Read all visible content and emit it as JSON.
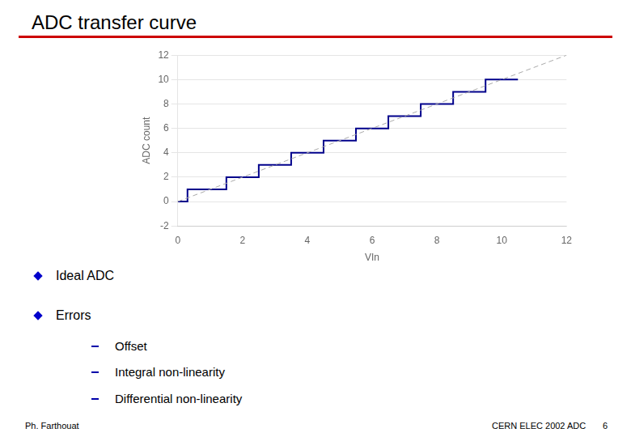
{
  "chart_data": {
    "type": "line",
    "title": "ADC transfer curve",
    "xlabel": "VIn",
    "ylabel": "ADC count",
    "annotations": [
      "Ideal ADC",
      "Errors",
      "Offset",
      "Integral non-linearity",
      "Differential non-linearity",
      "Ph. Farthouat",
      "CERN ELEC 2002 ADC",
      "6"
    ],
    "series": [
      {
        "x": [
          0,
          12
        ],
        "values": [
          0,
          12
        ],
        "color": "#aaaaaa",
        "line_style": "dashed"
      },
      {
        "x": [
          0.0,
          0.3,
          0.3,
          0.9,
          0.9,
          1.5,
          1.5,
          2.5,
          2.5,
          3.0,
          3.0,
          3.5,
          3.5,
          4.5,
          4.5,
          4.8,
          4.8,
          5.5,
          5.5,
          6.5,
          6.5,
          6.7,
          6.7,
          7.5,
          7.5,
          8.0,
          8.0,
          8.5,
          8.5,
          9.5,
          9.5,
          10.5
        ],
        "values": [
          0.0,
          0.0,
          1.0,
          1.0,
          1.0,
          1.0,
          2.0,
          2.0,
          3.0,
          3.0,
          3.0,
          3.0,
          4.0,
          4.0,
          5.0,
          5.0,
          5.0,
          5.0,
          6.0,
          6.0,
          7.0,
          7.0,
          7.0,
          7.0,
          8.0,
          8.0,
          8.0,
          8.0,
          9.0,
          9.0,
          10.0,
          10.0
        ],
        "color": "#00008b",
        "line_style": "solid"
      }
    ],
    "xlim": [
      0,
      12
    ],
    "ylim": [
      -2,
      12
    ],
    "xticks": [
      0,
      2,
      4,
      6,
      8,
      10,
      12
    ],
    "yticks": [
      -2,
      0,
      2,
      4,
      6,
      8,
      10,
      12
    ],
    "grid": "y",
    "legend": false
  }
}
